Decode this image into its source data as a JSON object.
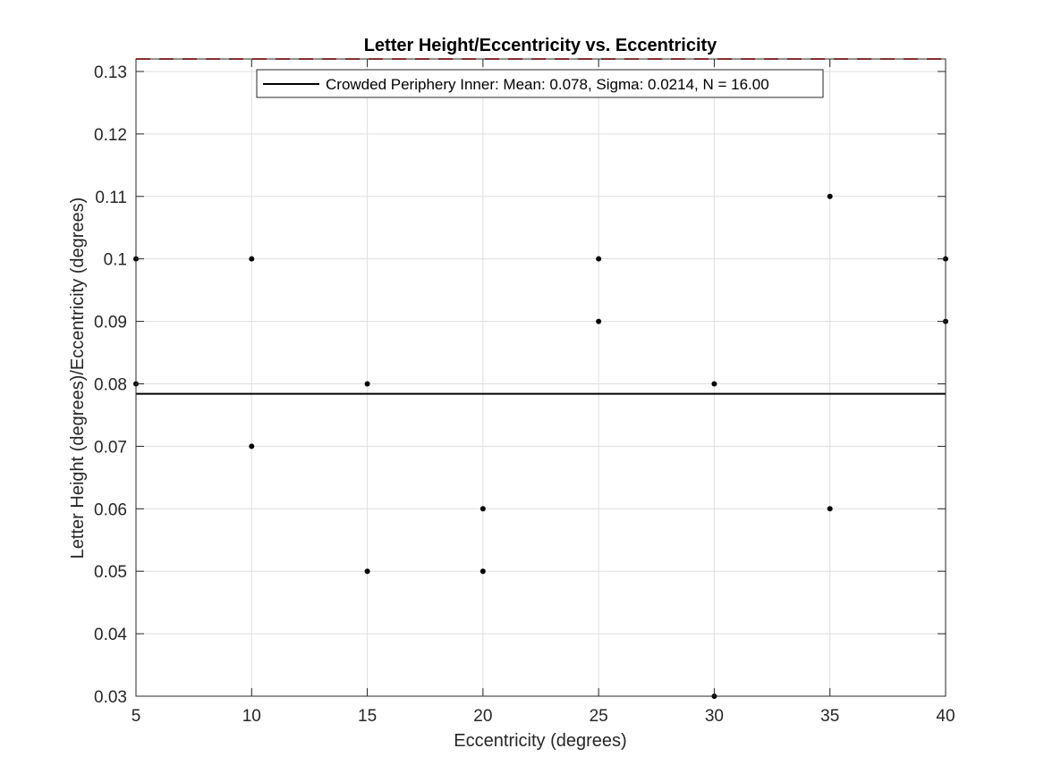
{
  "chart_data": {
    "type": "scatter",
    "title": "Letter Height/Eccentricity vs. Eccentricity",
    "xlabel": "Eccentricity (degrees)",
    "ylabel": "Letter Height (degrees)/Eccentricity (degrees)",
    "xlim": [
      5,
      40
    ],
    "ylim": [
      0.03,
      0.132
    ],
    "xticks": [
      5,
      10,
      15,
      20,
      25,
      30,
      35,
      40
    ],
    "yticks": [
      0.03,
      0.04,
      0.05,
      0.06,
      0.07,
      0.08,
      0.09,
      0.1,
      0.11,
      0.12,
      0.13
    ],
    "ytick_labels": [
      "0.03",
      "0.04",
      "0.05",
      "0.06",
      "0.07",
      "0.08",
      "0.09",
      "0.1",
      "0.11",
      "0.12",
      "0.13"
    ],
    "grid": true,
    "legend_position": "top",
    "series": [
      {
        "marker_color": "#000000",
        "points": [
          {
            "x": 5,
            "y": 0.1
          },
          {
            "x": 5,
            "y": 0.08
          },
          {
            "x": 10,
            "y": 0.1
          },
          {
            "x": 10,
            "y": 0.07
          },
          {
            "x": 15,
            "y": 0.08
          },
          {
            "x": 15,
            "y": 0.05
          },
          {
            "x": 20,
            "y": 0.06
          },
          {
            "x": 20,
            "y": 0.05
          },
          {
            "x": 25,
            "y": 0.1
          },
          {
            "x": 25,
            "y": 0.09
          },
          {
            "x": 30,
            "y": 0.08
          },
          {
            "x": 30,
            "y": 0.03
          },
          {
            "x": 35,
            "y": 0.11
          },
          {
            "x": 35,
            "y": 0.06
          },
          {
            "x": 40,
            "y": 0.1
          },
          {
            "x": 40,
            "y": 0.09
          }
        ]
      }
    ],
    "reference_lines": [
      {
        "name": "Crowded Periphery Inner: Mean: 0.078, Sigma: 0.0214, N = 16.00",
        "y": 0.0784,
        "color": "#000000",
        "style": "solid"
      },
      {
        "y": 0.132,
        "color": "#e03c3c",
        "style": "dashed"
      }
    ]
  }
}
